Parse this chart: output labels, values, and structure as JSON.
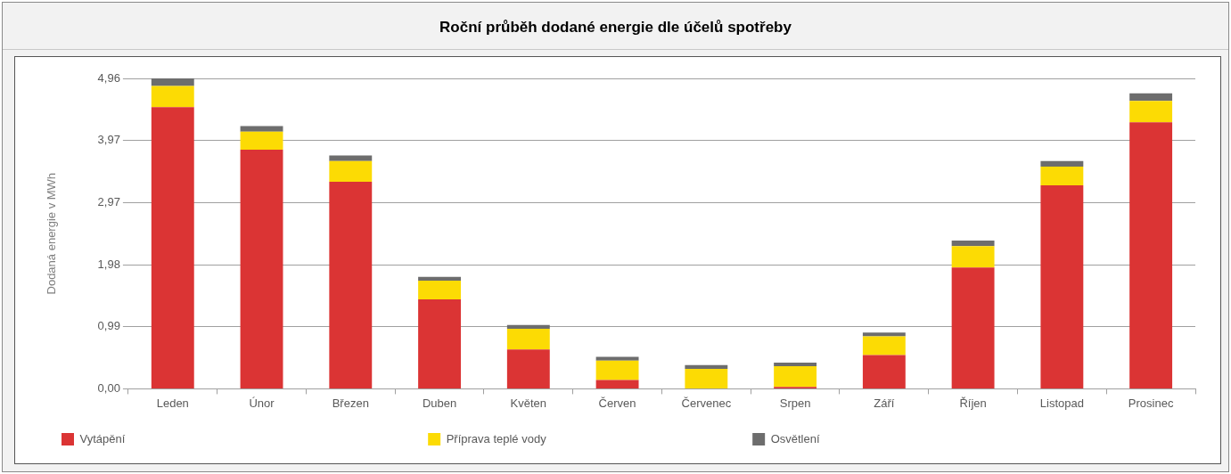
{
  "chart_data": {
    "type": "bar",
    "title": "Roční průběh dodané energie dle účelů spotřeby",
    "ylabel": "Dodaná energie v MWh",
    "categories": [
      "Leden",
      "Únor",
      "Březen",
      "Duben",
      "Květen",
      "Červen",
      "Červenec",
      "Srpen",
      "Září",
      "Říjen",
      "Listopad",
      "Prosinec"
    ],
    "stacked": true,
    "ylim": [
      0,
      4.96
    ],
    "yticks": [
      {
        "value": 0,
        "label": "0,00"
      },
      {
        "value": 0.99,
        "label": "0,99"
      },
      {
        "value": 1.98,
        "label": "1,98"
      },
      {
        "value": 2.97,
        "label": "2,97"
      },
      {
        "value": 3.97,
        "label": "3,97"
      },
      {
        "value": 4.96,
        "label": "4,96"
      }
    ],
    "grid": "y",
    "legend": "bottom",
    "series": [
      {
        "name": "Vytápění",
        "color": "#db3434",
        "values": [
          4.5,
          3.82,
          3.31,
          1.43,
          0.63,
          0.14,
          0,
          0.03,
          0.54,
          1.94,
          3.25,
          4.26
        ]
      },
      {
        "name": "Příprava teplé vody",
        "color": "#fcdb04",
        "values": [
          0.34,
          0.29,
          0.33,
          0.3,
          0.33,
          0.31,
          0.32,
          0.33,
          0.3,
          0.34,
          0.3,
          0.34
        ]
      },
      {
        "name": "Osvětlení",
        "color": "#6d6d6d",
        "values": [
          0.12,
          0.09,
          0.09,
          0.06,
          0.06,
          0.06,
          0.06,
          0.06,
          0.06,
          0.09,
          0.09,
          0.12
        ]
      }
    ]
  }
}
